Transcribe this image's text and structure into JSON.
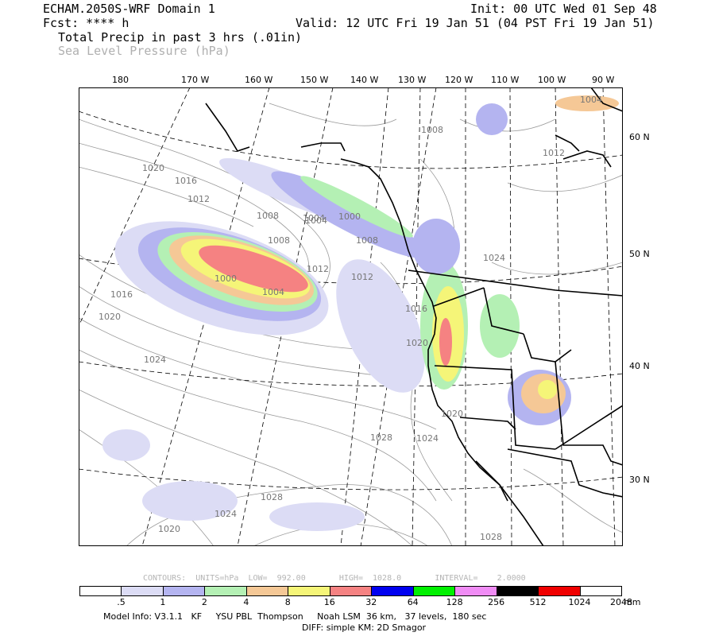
{
  "header": {
    "model": "ECHAM.2050S-WRF Domain 1",
    "fcst": "Fcst: **** h",
    "field1": "Total Precip in past 3 hrs (.01in)",
    "field2": "Sea Level Pressure (hPa)",
    "init": "Init: 00 UTC Wed 01 Sep 48",
    "valid": "Valid: 12 UTC Fri 19 Jan 51 (04 PST Fri 19 Jan 51)"
  },
  "lon_labels": [
    "180",
    "170 W",
    "160 W",
    "150 W",
    "140 W",
    "130 W",
    "120 W",
    "110 W",
    "100 W",
    "90 W"
  ],
  "lat_labels": [
    "60 N",
    "50 N",
    "40 N",
    "30 N"
  ],
  "isobar_labels": [
    "1008",
    "1012",
    "1016",
    "1020",
    "1024",
    "1028",
    "1004",
    "1000",
    "1004",
    "1008",
    "1012",
    "1016",
    "1020",
    "1024",
    "1028",
    "1020",
    "1024",
    "1028",
    "1024",
    "1020",
    "1008",
    "1012",
    "1004",
    "1016",
    "1020",
    "1000",
    "1004",
    "1008",
    "1012"
  ],
  "contours": {
    "title": "CONTOURS:",
    "units": "UNITS=hPa",
    "low": "LOW=  992.00",
    "high": "HIGH=  1028.0",
    "interval": "INTERVAL=    2.0000"
  },
  "legend": {
    "colors": [
      "#ffffff",
      "#dcdcf5",
      "#b4b4f0",
      "#b4f0b4",
      "#f5c896",
      "#f5f578",
      "#f58282",
      "#0000f0",
      "#00f000",
      "#f08cf5",
      "#000000",
      "#f00000",
      "#ffffff"
    ],
    "labels": [
      ".5",
      "1",
      "2",
      "4",
      "8",
      "16",
      "32",
      "64",
      "128",
      "256",
      "512",
      "1024",
      "2048"
    ],
    "unit": "mm"
  },
  "footer": {
    "line1": "Model Info: V3.1.1   KF     YSU PBL  Thompson     Noah LSM  36 km,   37 levels,  180 sec",
    "line2": "DIFF: simple KM: 2D Smagor"
  }
}
